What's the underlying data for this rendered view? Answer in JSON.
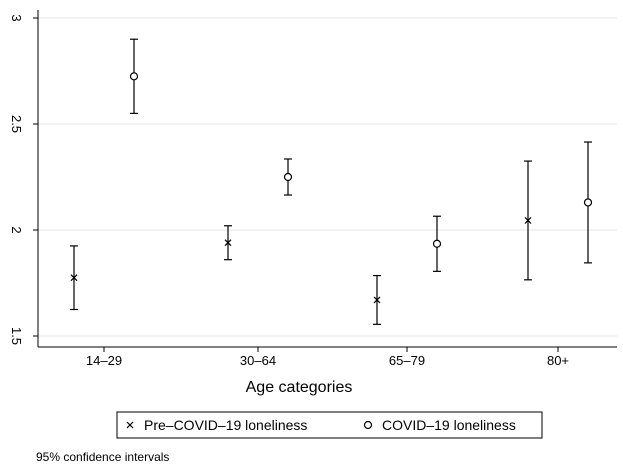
{
  "chart_data": {
    "type": "scatter",
    "categories": [
      "14–29",
      "30–64",
      "65–79",
      "80+"
    ],
    "xlabel": "Age categories",
    "ylabel": "",
    "ylim": [
      1.45,
      3.05
    ],
    "yticks": [
      1.5,
      2,
      2.5,
      3
    ],
    "ytick_labels": [
      "1.5",
      "2",
      "2.5",
      "3"
    ],
    "grid": true,
    "legend_position": "bottom",
    "series": [
      {
        "name": "Pre–COVID–19 loneliness",
        "marker": "x",
        "values": [
          1.775,
          1.94,
          1.67,
          2.045
        ],
        "lower": [
          1.625,
          1.86,
          1.555,
          1.765
        ],
        "upper": [
          1.925,
          2.02,
          1.785,
          2.325
        ]
      },
      {
        "name": "COVID–19 loneliness",
        "marker": "o",
        "values": [
          2.725,
          2.25,
          1.935,
          2.13
        ],
        "lower": [
          2.55,
          2.165,
          1.805,
          1.845
        ],
        "upper": [
          2.9,
          2.335,
          2.065,
          2.415
        ]
      }
    ],
    "note": "95% confidence intervals"
  }
}
